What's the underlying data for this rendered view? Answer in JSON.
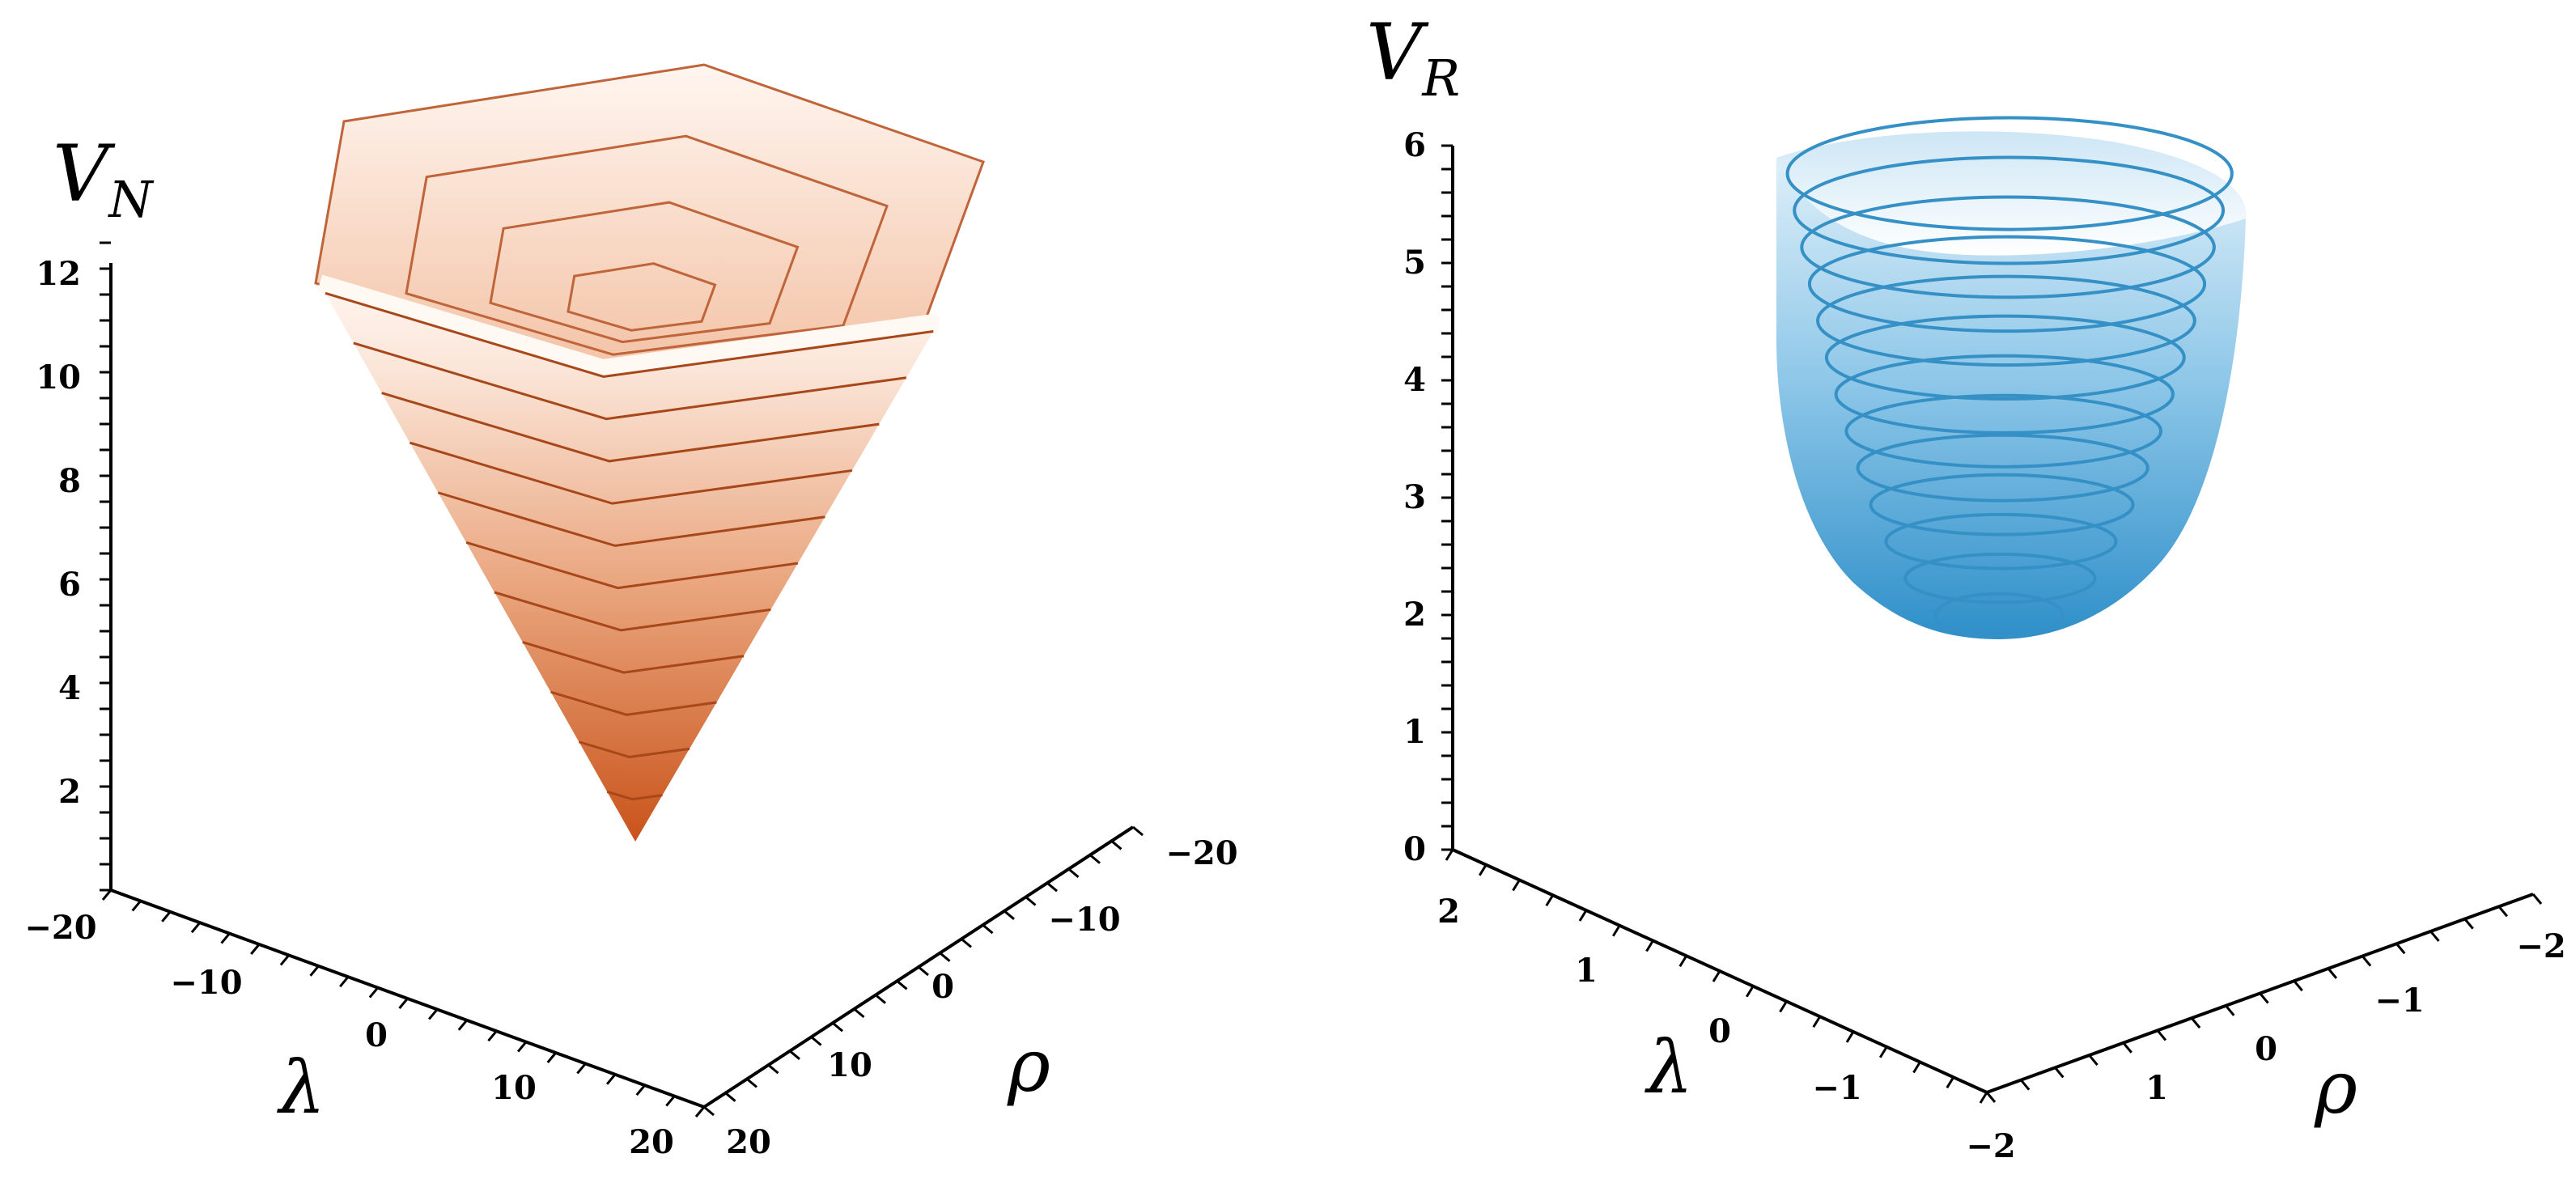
{
  "chart_data": [
    {
      "type": "surface3d",
      "ztitle": "V",
      "zsub": "N",
      "xlabel": "λ",
      "ylabel": "ρ",
      "z_ticks": [
        "2",
        "4",
        "6",
        "8",
        "10",
        "12"
      ],
      "lambda_ticks": [
        "−20",
        "−10",
        "0",
        "10",
        "20"
      ],
      "rho_ticks": [
        "20",
        "10",
        "0",
        "−10",
        "−20"
      ],
      "surface_color": "#d3632a",
      "contour_levels": [
        2,
        3,
        4,
        5,
        6,
        7,
        8,
        9,
        10,
        11,
        12
      ]
    },
    {
      "type": "surface3d",
      "ztitle": "V",
      "zsub": "R",
      "xlabel": "λ",
      "ylabel": "ρ",
      "z_ticks": [
        "0",
        "1",
        "2",
        "3",
        "4",
        "5",
        "6"
      ],
      "lambda_ticks": [
        "2",
        "1",
        "0",
        "−1",
        "−2"
      ],
      "rho_ticks": [
        "1",
        "0",
        "−1",
        "−2"
      ],
      "surface_color": "#3a9bd1",
      "contour_levels": [
        1.9,
        2.2,
        2.5,
        2.8,
        3.1,
        3.4,
        3.7,
        4.0,
        4.3,
        4.6,
        4.9,
        5.2,
        5.5
      ]
    }
  ]
}
